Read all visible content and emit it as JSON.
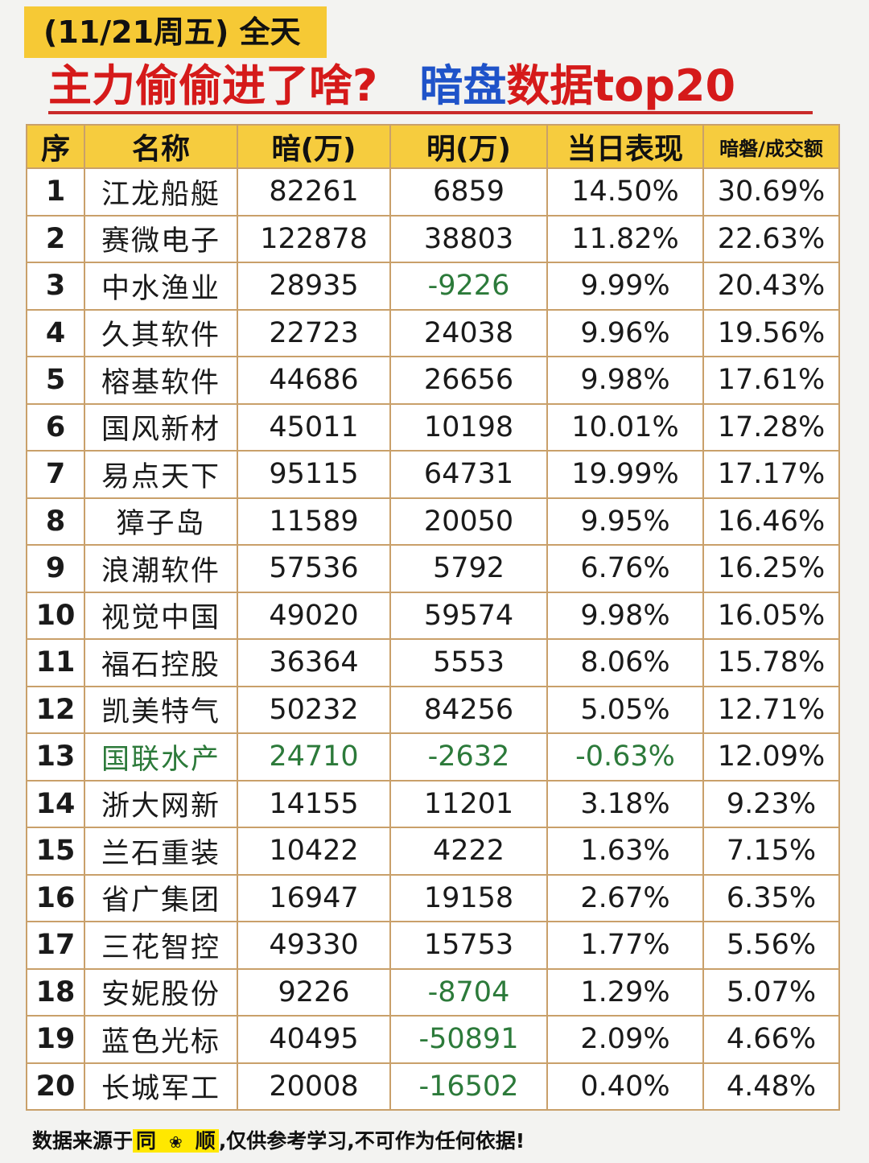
{
  "badge": {
    "date_text": "(11/21周五) 全天"
  },
  "headline": {
    "part1": "主力偷偷进了啥?",
    "part2": "暗盘",
    "part3": "数据top20"
  },
  "table": {
    "headers": [
      "序",
      "名称",
      "暗(万)",
      "明(万)",
      "当日表现",
      "暗磐/成交额"
    ],
    "rows": [
      {
        "idx": "1",
        "name": "江龙船艇",
        "dark": "82261",
        "light": "6859",
        "perf": "14.50%",
        "ratio": "30.69%"
      },
      {
        "idx": "2",
        "name": "赛微电子",
        "dark": "122878",
        "light": "38803",
        "perf": "11.82%",
        "ratio": "22.63%"
      },
      {
        "idx": "3",
        "name": "中水渔业",
        "dark": "28935",
        "light": "-9226",
        "perf": "9.99%",
        "ratio": "20.43%"
      },
      {
        "idx": "4",
        "name": "久其软件",
        "dark": "22723",
        "light": "24038",
        "perf": "9.96%",
        "ratio": "19.56%"
      },
      {
        "idx": "5",
        "name": "榕基软件",
        "dark": "44686",
        "light": "26656",
        "perf": "9.98%",
        "ratio": "17.61%"
      },
      {
        "idx": "6",
        "name": "国风新材",
        "dark": "45011",
        "light": "10198",
        "perf": "10.01%",
        "ratio": "17.28%"
      },
      {
        "idx": "7",
        "name": "易点天下",
        "dark": "95115",
        "light": "64731",
        "perf": "19.99%",
        "ratio": "17.17%"
      },
      {
        "idx": "8",
        "name": "獐子岛",
        "dark": "11589",
        "light": "20050",
        "perf": "9.95%",
        "ratio": "16.46%"
      },
      {
        "idx": "9",
        "name": "浪潮软件",
        "dark": "57536",
        "light": "5792",
        "perf": "6.76%",
        "ratio": "16.25%"
      },
      {
        "idx": "10",
        "name": "视觉中国",
        "dark": "49020",
        "light": "59574",
        "perf": "9.98%",
        "ratio": "16.05%"
      },
      {
        "idx": "11",
        "name": "福石控股",
        "dark": "36364",
        "light": "5553",
        "perf": "8.06%",
        "ratio": "15.78%"
      },
      {
        "idx": "12",
        "name": "凯美特气",
        "dark": "50232",
        "light": "84256",
        "perf": "5.05%",
        "ratio": "12.71%"
      },
      {
        "idx": "13",
        "name": "国联水产",
        "dark": "24710",
        "light": "-2632",
        "perf": "-0.63%",
        "ratio": "12.09%"
      },
      {
        "idx": "14",
        "name": "浙大网新",
        "dark": "14155",
        "light": "11201",
        "perf": "3.18%",
        "ratio": "9.23%"
      },
      {
        "idx": "15",
        "name": "兰石重装",
        "dark": "10422",
        "light": "4222",
        "perf": "1.63%",
        "ratio": "7.15%"
      },
      {
        "idx": "16",
        "name": "省广集团",
        "dark": "16947",
        "light": "19158",
        "perf": "2.67%",
        "ratio": "6.35%"
      },
      {
        "idx": "17",
        "name": "三花智控",
        "dark": "49330",
        "light": "15753",
        "perf": "1.77%",
        "ratio": "5.56%"
      },
      {
        "idx": "18",
        "name": "安妮股份",
        "dark": "9226",
        "light": "-8704",
        "perf": "1.29%",
        "ratio": "5.07%"
      },
      {
        "idx": "19",
        "name": "蓝色光标",
        "dark": "40495",
        "light": "-50891",
        "perf": "2.09%",
        "ratio": "4.66%"
      },
      {
        "idx": "20",
        "name": "长城军工",
        "dark": "20008",
        "light": "-16502",
        "perf": "0.40%",
        "ratio": "4.48%"
      }
    ]
  },
  "footer": {
    "prefix": "数据来源于",
    "source_a": "同",
    "source_icon": "flower-icon",
    "source_b": "顺",
    "suffix": ",仅供参考学习,不可作为任何依据!"
  },
  "colors": {
    "red": "#d22a2a",
    "green": "#2c7a3a",
    "header_yellow": "#f6cc3e",
    "blue": "#1f53c9"
  }
}
